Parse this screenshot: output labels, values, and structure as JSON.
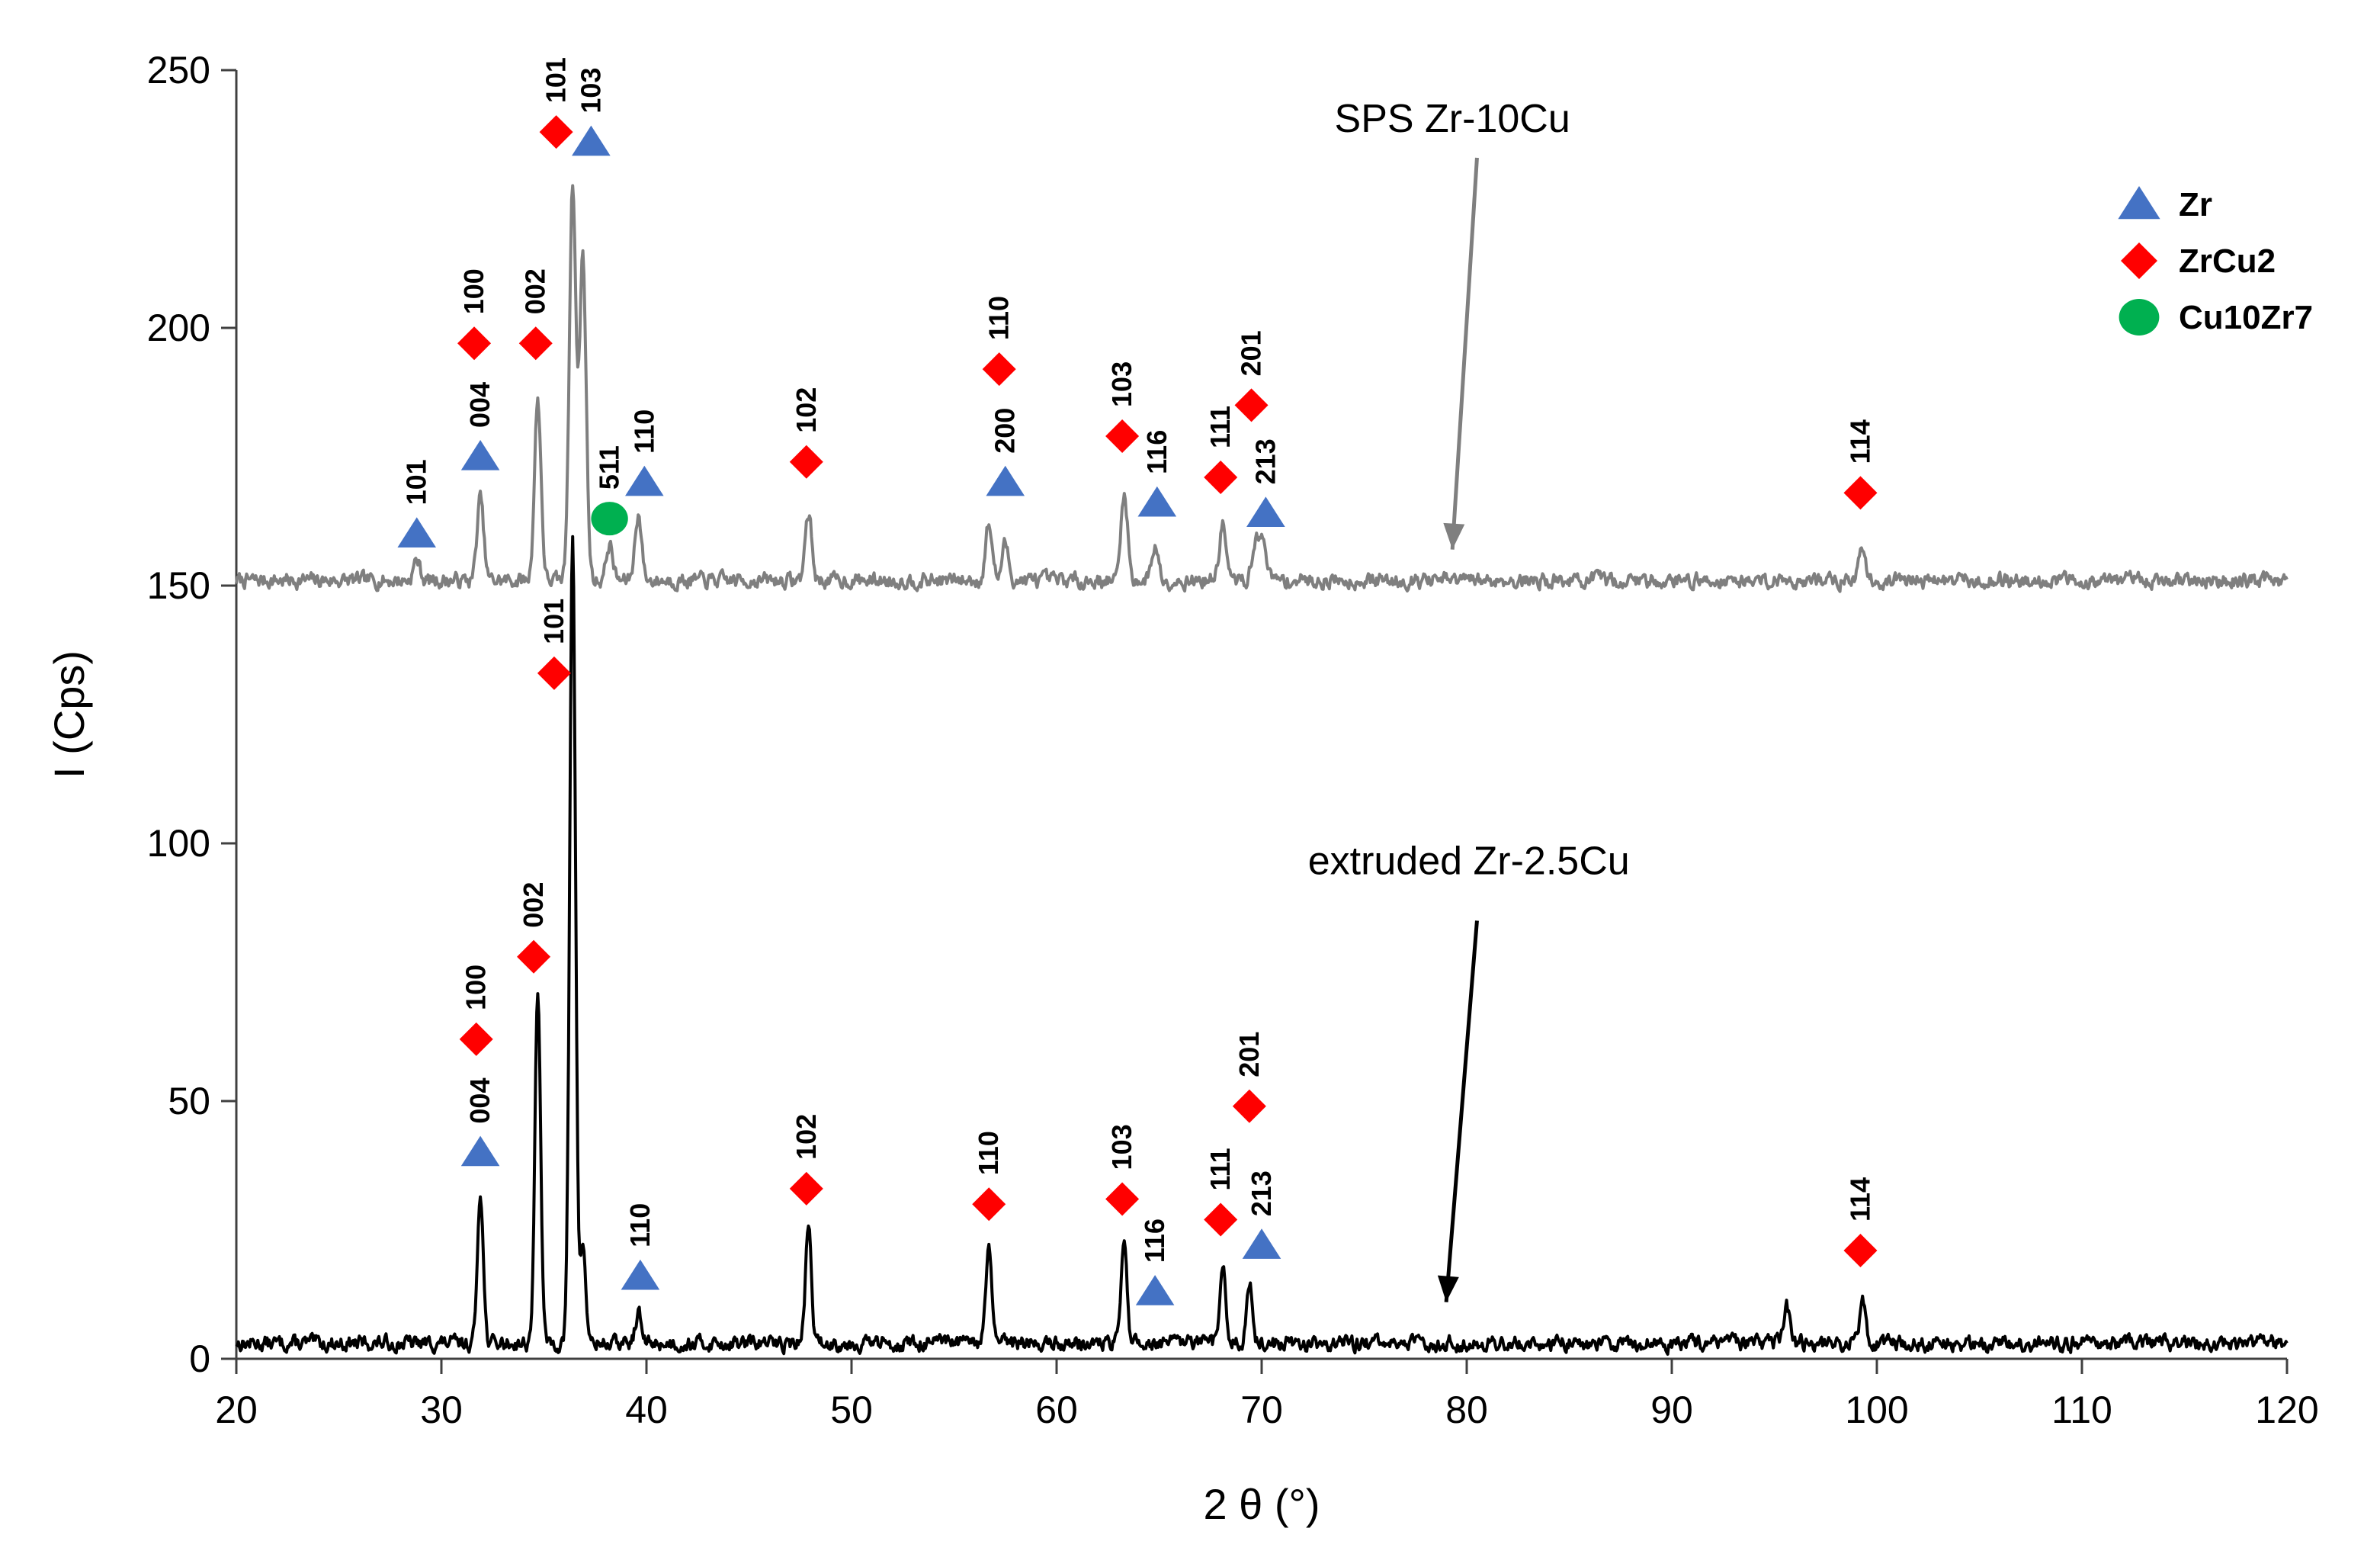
{
  "chart_data": {
    "type": "line",
    "title": "",
    "xlabel": "2 θ (°)",
    "ylabel": "I (Cps)",
    "xlim": [
      20,
      120
    ],
    "ylim": [
      0,
      250
    ],
    "xticks": [
      20,
      30,
      40,
      50,
      60,
      70,
      80,
      90,
      100,
      110,
      120
    ],
    "yticks": [
      0,
      50,
      100,
      150,
      200,
      250
    ],
    "grid": false,
    "series": [
      {
        "name": "SPS Zr-10Cu",
        "color": "#7f7f7f",
        "baseline": 151,
        "peaks": [
          {
            "x": 28.8,
            "y": 155
          },
          {
            "x": 31.9,
            "y": 167
          },
          {
            "x": 34.7,
            "y": 186
          },
          {
            "x": 36.4,
            "y": 228
          },
          {
            "x": 36.9,
            "y": 214
          },
          {
            "x": 38.2,
            "y": 158
          },
          {
            "x": 39.6,
            "y": 164
          },
          {
            "x": 47.9,
            "y": 164
          },
          {
            "x": 56.7,
            "y": 162
          },
          {
            "x": 57.5,
            "y": 158
          },
          {
            "x": 63.3,
            "y": 168
          },
          {
            "x": 64.8,
            "y": 158
          },
          {
            "x": 68.1,
            "y": 162
          },
          {
            "x": 69.7,
            "y": 159
          },
          {
            "x": 70.1,
            "y": 159
          },
          {
            "x": 99.3,
            "y": 157
          }
        ]
      },
      {
        "name": "extruded Zr-2.5Cu",
        "color": "#000000",
        "baseline": 3,
        "peaks": [
          {
            "x": 31.9,
            "y": 33
          },
          {
            "x": 34.7,
            "y": 70
          },
          {
            "x": 36.4,
            "y": 160
          },
          {
            "x": 36.9,
            "y": 22
          },
          {
            "x": 39.6,
            "y": 9
          },
          {
            "x": 47.9,
            "y": 26
          },
          {
            "x": 56.7,
            "y": 22
          },
          {
            "x": 63.3,
            "y": 23
          },
          {
            "x": 68.1,
            "y": 18
          },
          {
            "x": 69.4,
            "y": 15
          },
          {
            "x": 95.6,
            "y": 10
          },
          {
            "x": 99.3,
            "y": 11
          }
        ]
      }
    ],
    "annotations": [
      {
        "text": "SPS Zr-10Cu",
        "label_x": 79.3,
        "label_y": 238,
        "arrow_from": [
          80.5,
          233
        ],
        "arrow_to": [
          79.3,
          157
        ],
        "color": "#7f7f7f"
      },
      {
        "text": "extruded Zr-2.5Cu",
        "label_x": 80.1,
        "label_y": 94,
        "arrow_from": [
          80.5,
          85
        ],
        "arrow_to": [
          79.0,
          11
        ],
        "color": "#000000"
      }
    ],
    "legend": {
      "position": "top-right",
      "entries": [
        {
          "label": "Zr",
          "marker": "triangle",
          "color": "#4472c4"
        },
        {
          "label": "ZrCu2",
          "marker": "diamond",
          "color": "#ff0000"
        },
        {
          "label": "Cu10Zr7",
          "marker": "circle",
          "color": "#00b050"
        }
      ]
    },
    "markers": [
      {
        "phase": "Zr",
        "hkl": "101",
        "x": 28.8,
        "y": 160,
        "series": "SPS Zr-10Cu"
      },
      {
        "phase": "Zr",
        "hkl": "004",
        "x": 31.9,
        "y": 175,
        "series": "SPS Zr-10Cu"
      },
      {
        "phase": "ZrCu2",
        "hkl": "100",
        "x": 31.6,
        "y": 197,
        "series": "SPS Zr-10Cu"
      },
      {
        "phase": "ZrCu2",
        "hkl": "002",
        "x": 34.6,
        "y": 197,
        "series": "SPS Zr-10Cu"
      },
      {
        "phase": "ZrCu2",
        "hkl": "101",
        "x": 35.6,
        "y": 238,
        "series": "SPS Zr-10Cu"
      },
      {
        "phase": "Zr",
        "hkl": "103",
        "x": 37.3,
        "y": 236,
        "series": "SPS Zr-10Cu"
      },
      {
        "phase": "Cu10Zr7",
        "hkl": "511",
        "x": 38.2,
        "y": 163,
        "series": "SPS Zr-10Cu"
      },
      {
        "phase": "Zr",
        "hkl": "110",
        "x": 39.9,
        "y": 170,
        "series": "SPS Zr-10Cu"
      },
      {
        "phase": "ZrCu2",
        "hkl": "102",
        "x": 47.8,
        "y": 174,
        "series": "SPS Zr-10Cu"
      },
      {
        "phase": "ZrCu2",
        "hkl": "110",
        "x": 57.2,
        "y": 192,
        "series": "SPS Zr-10Cu"
      },
      {
        "phase": "Zr",
        "hkl": "200",
        "x": 57.5,
        "y": 170,
        "series": "SPS Zr-10Cu"
      },
      {
        "phase": "ZrCu2",
        "hkl": "103",
        "x": 63.2,
        "y": 179,
        "series": "SPS Zr-10Cu"
      },
      {
        "phase": "Zr",
        "hkl": "116",
        "x": 64.9,
        "y": 166,
        "series": "SPS Zr-10Cu"
      },
      {
        "phase": "ZrCu2",
        "hkl": "111",
        "x": 68.0,
        "y": 171,
        "series": "SPS Zr-10Cu"
      },
      {
        "phase": "ZrCu2",
        "hkl": "201",
        "x": 69.5,
        "y": 185,
        "series": "SPS Zr-10Cu"
      },
      {
        "phase": "Zr",
        "hkl": "213",
        "x": 70.2,
        "y": 164,
        "series": "SPS Zr-10Cu"
      },
      {
        "phase": "ZrCu2",
        "hkl": "114",
        "x": 99.2,
        "y": 168,
        "series": "SPS Zr-10Cu"
      },
      {
        "phase": "Zr",
        "hkl": "004",
        "x": 31.9,
        "y": 40,
        "series": "extruded Zr-2.5Cu"
      },
      {
        "phase": "ZrCu2",
        "hkl": "100",
        "x": 31.7,
        "y": 62,
        "series": "extruded Zr-2.5Cu"
      },
      {
        "phase": "ZrCu2",
        "hkl": "002",
        "x": 34.5,
        "y": 78,
        "series": "extruded Zr-2.5Cu"
      },
      {
        "phase": "ZrCu2",
        "hkl": "101",
        "x": 35.5,
        "y": 133,
        "series": "extruded Zr-2.5Cu"
      },
      {
        "phase": "Zr",
        "hkl": "110",
        "x": 39.7,
        "y": 16,
        "series": "extruded Zr-2.5Cu"
      },
      {
        "phase": "ZrCu2",
        "hkl": "102",
        "x": 47.8,
        "y": 33,
        "series": "extruded Zr-2.5Cu"
      },
      {
        "phase": "ZrCu2",
        "hkl": "110",
        "x": 56.7,
        "y": 30,
        "series": "extruded Zr-2.5Cu"
      },
      {
        "phase": "ZrCu2",
        "hkl": "103",
        "x": 63.2,
        "y": 31,
        "series": "extruded Zr-2.5Cu"
      },
      {
        "phase": "Zr",
        "hkl": "116",
        "x": 64.8,
        "y": 13,
        "series": "extruded Zr-2.5Cu"
      },
      {
        "phase": "ZrCu2",
        "hkl": "111",
        "x": 68.0,
        "y": 27,
        "series": "extruded Zr-2.5Cu"
      },
      {
        "phase": "ZrCu2",
        "hkl": "201",
        "x": 69.4,
        "y": 49,
        "series": "extruded Zr-2.5Cu"
      },
      {
        "phase": "Zr",
        "hkl": "213",
        "x": 70.0,
        "y": 22,
        "series": "extruded Zr-2.5Cu"
      },
      {
        "phase": "ZrCu2",
        "hkl": "114",
        "x": 99.2,
        "y": 21,
        "series": "extruded Zr-2.5Cu"
      }
    ]
  }
}
